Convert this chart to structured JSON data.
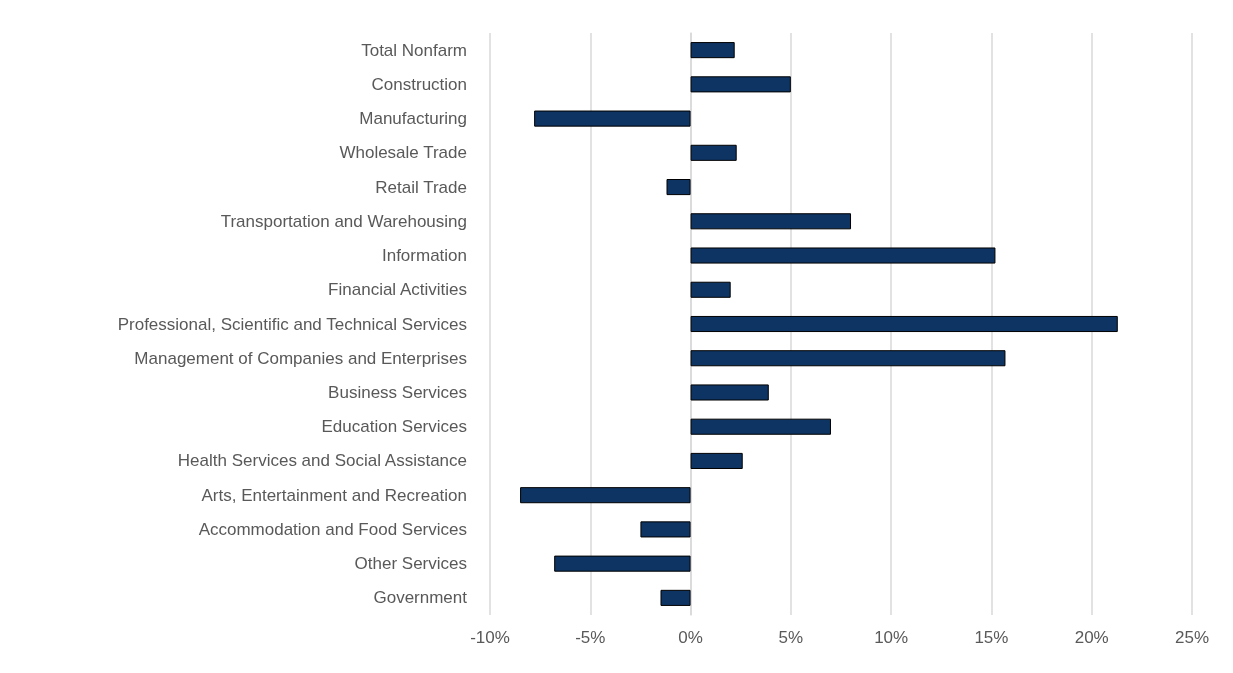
{
  "chart_data": {
    "type": "bar",
    "orientation": "horizontal",
    "categories": [
      "Total Nonfarm",
      "Construction",
      "Manufacturing",
      "Wholesale Trade",
      "Retail Trade",
      "Transportation and Warehousing",
      "Information",
      "Financial Activities",
      "Professional, Scientific and Technical Services",
      "Management of Companies and Enterprises",
      "Business Services",
      "Education Services",
      "Health Services and Social Assistance",
      "Arts, Entertainment and Recreation",
      "Accommodation and Food Services",
      "Other Services",
      "Government"
    ],
    "values": [
      2.2,
      5.0,
      -7.8,
      2.3,
      -1.2,
      8.0,
      15.2,
      2.0,
      21.3,
      15.7,
      3.9,
      7.0,
      2.6,
      -8.5,
      -2.5,
      -6.8,
      -1.5
    ],
    "color": "#0e3463",
    "xlim": [
      -10,
      25
    ],
    "xticks": [
      {
        "value": -10,
        "label": "-10%"
      },
      {
        "value": -5,
        "label": "-5%"
      },
      {
        "value": 0,
        "label": "0%"
      },
      {
        "value": 5,
        "label": "5%"
      },
      {
        "value": 10,
        "label": "10%"
      },
      {
        "value": 15,
        "label": "15%"
      },
      {
        "value": 20,
        "label": "20%"
      },
      {
        "value": 25,
        "label": "25%"
      }
    ],
    "grid": "x"
  }
}
